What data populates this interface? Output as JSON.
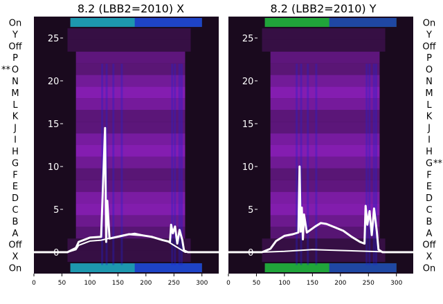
{
  "chart_data": [
    {
      "type": "heatmap",
      "title": "8.2 (LBB2=2010) X",
      "xlim": [
        0,
        330
      ],
      "ylim": [
        -2.5,
        27.5
      ],
      "x_ticks": [
        "0",
        "50",
        "100",
        "150",
        "200",
        "250",
        "300"
      ],
      "y_ticks": [
        "0",
        "5",
        "10",
        "15",
        "20",
        "25"
      ],
      "row_labels": [
        "On",
        "Y",
        "Off",
        "P",
        "O",
        "N",
        "M",
        "L",
        "K",
        "J",
        "I",
        "H",
        "G",
        "F",
        "E",
        "D",
        "C",
        "B",
        "A",
        "Off",
        "X",
        "On"
      ],
      "row_marker": {
        "row": "O",
        "text": "**"
      },
      "colors": {
        "dark": "#1a0a1e",
        "purple": "#8a1fb8",
        "cyan": "#1fb0c8",
        "blue": "#2020d0",
        "line": "#ffffff"
      },
      "series": [
        {
          "x": [
            0,
            60,
            75,
            80,
            100,
            120,
            127,
            129,
            131,
            135,
            150,
            170,
            190,
            210,
            230,
            243,
            245,
            248,
            252,
            256,
            260,
            265,
            268,
            275,
            300,
            330
          ],
          "y": [
            0,
            0,
            0.5,
            1.2,
            1.7,
            1.8,
            14.5,
            1.2,
            6.0,
            1.6,
            1.8,
            2.1,
            2.0,
            1.8,
            1.4,
            1.2,
            3.2,
            2.2,
            3.0,
            1.0,
            2.6,
            1.4,
            0.2,
            0,
            0,
            0
          ]
        },
        {
          "x": [
            0,
            60,
            75,
            80,
            100,
            120,
            140,
            160,
            180,
            200,
            220,
            240,
            270,
            330
          ],
          "y": [
            0,
            0,
            0.3,
            0.8,
            1.3,
            1.4,
            1.7,
            2.0,
            2.2,
            1.9,
            1.6,
            1.2,
            0,
            0
          ]
        }
      ]
    },
    {
      "type": "heatmap",
      "title": "8.2 (LBB2=2010) Y",
      "xlim": [
        0,
        330
      ],
      "ylim": [
        -2.5,
        27.5
      ],
      "x_ticks": [
        "0",
        "50",
        "100",
        "150",
        "200",
        "250",
        "300"
      ],
      "y_ticks": [
        "0",
        "5",
        "10",
        "15",
        "20",
        "25"
      ],
      "row_labels": [
        "On",
        "Y",
        "Off",
        "P",
        "O",
        "N",
        "M",
        "L",
        "K",
        "J",
        "I",
        "H",
        "G",
        "F",
        "E",
        "D",
        "C",
        "B",
        "A",
        "Off",
        "X",
        "On"
      ],
      "row_marker": {
        "row": "G",
        "text": "**"
      },
      "colors": {
        "dark": "#1a0a1e",
        "purple": "#8a1fb8",
        "green": "#22c040",
        "blue": "#2020d0",
        "line": "#ffffff"
      },
      "series": [
        {
          "x": [
            0,
            60,
            75,
            85,
            100,
            115,
            125,
            127,
            129,
            131,
            133,
            135,
            140,
            155,
            165,
            175,
            190,
            205,
            220,
            235,
            243,
            245,
            248,
            252,
            256,
            260,
            265,
            268,
            275,
            300,
            330
          ],
          "y": [
            0,
            0,
            0.4,
            1.3,
            1.9,
            2.1,
            2.3,
            10.0,
            2.4,
            5.2,
            1.5,
            4.4,
            2.3,
            3.0,
            3.4,
            3.3,
            2.9,
            2.5,
            1.8,
            1.2,
            1.0,
            5.4,
            3.2,
            4.8,
            2.0,
            5.1,
            2.4,
            0.3,
            0,
            0,
            0
          ]
        },
        {
          "x": [
            0,
            60,
            100,
            150,
            200,
            250,
            300,
            330
          ],
          "y": [
            0,
            0,
            0.1,
            0.3,
            0.2,
            0.1,
            0,
            0
          ]
        }
      ]
    }
  ]
}
